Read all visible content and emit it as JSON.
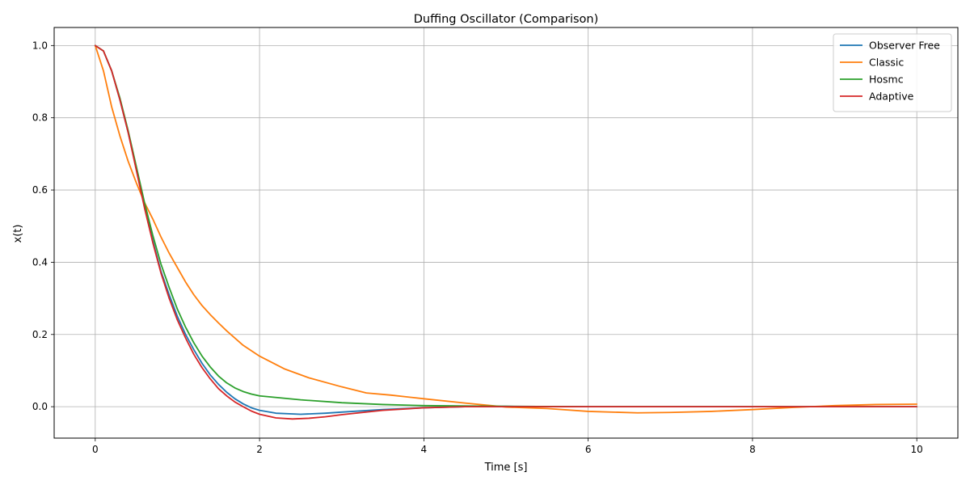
{
  "chart_data": {
    "type": "line",
    "title": "Duffing Oscillator (Comparison)",
    "xlabel": "Time [s]",
    "ylabel": "x(t)",
    "xlim": [
      -0.5,
      10.5
    ],
    "ylim": [
      -0.087,
      1.05
    ],
    "xticks": [
      0,
      2,
      4,
      6,
      8,
      10
    ],
    "xtick_labels": [
      "0",
      "2",
      "4",
      "6",
      "8",
      "10"
    ],
    "yticks": [
      0.0,
      0.2,
      0.4,
      0.6,
      0.8,
      1.0
    ],
    "ytick_labels": [
      "0.0",
      "0.2",
      "0.4",
      "0.6",
      "0.8",
      "1.0"
    ],
    "grid": true,
    "legend_position": "top-right",
    "series": [
      {
        "name": "Observer Free",
        "color": "#1f77b4",
        "x": [
          0,
          0.1,
          0.2,
          0.3,
          0.4,
          0.5,
          0.6,
          0.7,
          0.8,
          0.9,
          1.0,
          1.1,
          1.2,
          1.3,
          1.4,
          1.5,
          1.6,
          1.7,
          1.8,
          1.9,
          2.0,
          2.2,
          2.5,
          2.8,
          3.0,
          3.5,
          4.0,
          4.5,
          5.0,
          6.0,
          7.0,
          8.0,
          9.0,
          10.0
        ],
        "y": [
          1.0,
          0.985,
          0.93,
          0.85,
          0.76,
          0.66,
          0.555,
          0.46,
          0.375,
          0.31,
          0.25,
          0.2,
          0.158,
          0.12,
          0.088,
          0.062,
          0.04,
          0.022,
          0.008,
          -0.003,
          -0.01,
          -0.018,
          -0.021,
          -0.018,
          -0.015,
          -0.008,
          -0.003,
          0.0,
          0.001,
          0.0,
          0.0,
          0.0,
          0.0,
          0.0
        ]
      },
      {
        "name": "Classic",
        "color": "#ff7f0e",
        "x": [
          0,
          0.1,
          0.2,
          0.3,
          0.4,
          0.5,
          0.6,
          0.7,
          0.8,
          0.9,
          1.0,
          1.1,
          1.2,
          1.3,
          1.4,
          1.5,
          1.6,
          1.8,
          2.0,
          2.3,
          2.6,
          3.0,
          3.3,
          3.6,
          4.0,
          4.5,
          5.0,
          5.5,
          6.0,
          6.6,
          7.0,
          7.5,
          8.0,
          8.5,
          9.0,
          9.5,
          10.0
        ],
        "y": [
          1.0,
          0.93,
          0.83,
          0.75,
          0.68,
          0.62,
          0.565,
          0.52,
          0.47,
          0.425,
          0.385,
          0.345,
          0.31,
          0.28,
          0.255,
          0.232,
          0.21,
          0.17,
          0.14,
          0.105,
          0.08,
          0.055,
          0.038,
          0.032,
          0.022,
          0.01,
          -0.001,
          -0.005,
          -0.013,
          -0.017,
          -0.016,
          -0.013,
          -0.008,
          -0.002,
          0.003,
          0.006,
          0.007
        ]
      },
      {
        "name": "Hosmc",
        "color": "#2ca02c",
        "x": [
          0,
          0.1,
          0.2,
          0.3,
          0.4,
          0.5,
          0.6,
          0.7,
          0.8,
          0.9,
          1.0,
          1.1,
          1.2,
          1.3,
          1.4,
          1.5,
          1.6,
          1.7,
          1.8,
          1.9,
          2.0,
          2.5,
          3.0,
          3.5,
          4.0,
          5.0,
          6.0,
          7.0,
          8.0,
          9.0,
          10.0
        ],
        "y": [
          1.0,
          0.985,
          0.93,
          0.855,
          0.765,
          0.665,
          0.565,
          0.475,
          0.395,
          0.33,
          0.27,
          0.22,
          0.177,
          0.14,
          0.11,
          0.085,
          0.066,
          0.052,
          0.042,
          0.035,
          0.03,
          0.019,
          0.011,
          0.006,
          0.003,
          0.001,
          0.0,
          0.0,
          0.0,
          0.0,
          0.0
        ]
      },
      {
        "name": "Adaptive",
        "color": "#d62728",
        "x": [
          0,
          0.1,
          0.2,
          0.3,
          0.4,
          0.5,
          0.6,
          0.7,
          0.8,
          0.9,
          1.0,
          1.1,
          1.2,
          1.3,
          1.4,
          1.5,
          1.6,
          1.7,
          1.8,
          1.9,
          2.0,
          2.2,
          2.4,
          2.6,
          2.8,
          3.0,
          3.5,
          4.0,
          4.5,
          5.0,
          6.0,
          7.0,
          8.0,
          9.0,
          10.0
        ],
        "y": [
          1.0,
          0.985,
          0.93,
          0.85,
          0.76,
          0.655,
          0.55,
          0.455,
          0.37,
          0.3,
          0.24,
          0.19,
          0.145,
          0.108,
          0.077,
          0.05,
          0.03,
          0.013,
          0.0,
          -0.012,
          -0.021,
          -0.031,
          -0.034,
          -0.032,
          -0.028,
          -0.022,
          -0.01,
          -0.003,
          0.0,
          0.0,
          0.0,
          0.0,
          0.0,
          0.0,
          0.0
        ]
      }
    ]
  }
}
